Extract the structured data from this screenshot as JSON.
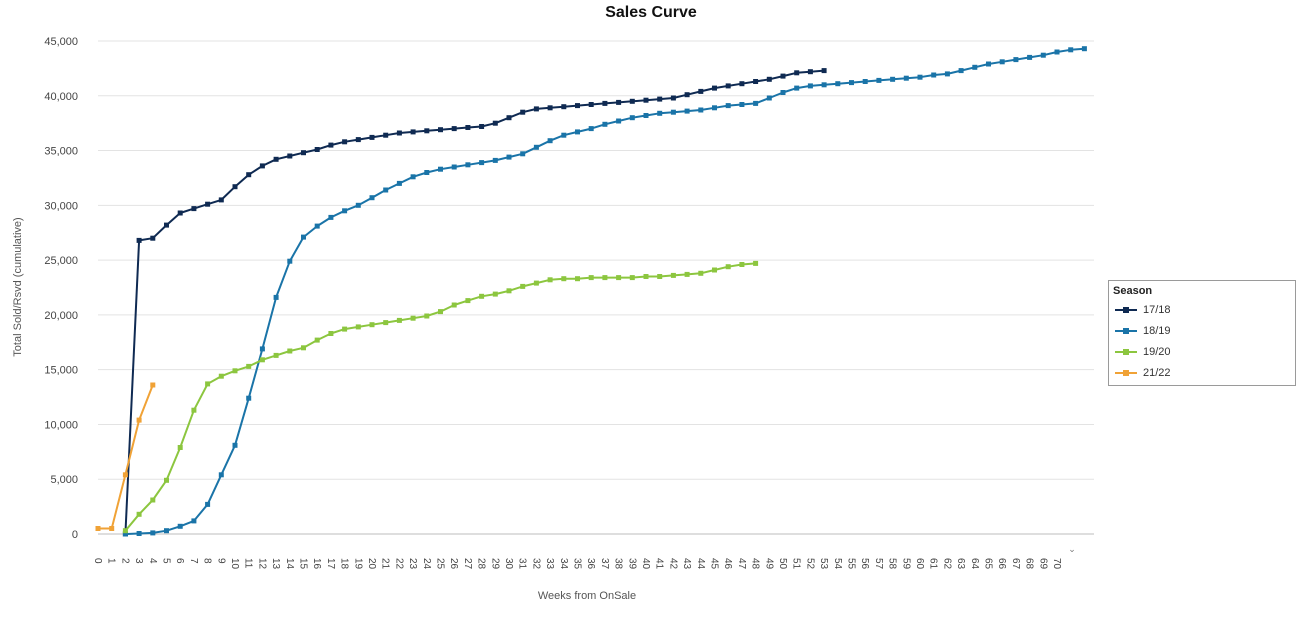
{
  "chart_data": {
    "type": "line",
    "title": "Sales Curve",
    "xlabel": "Weeks from OnSale",
    "ylabel": "Total Sold/Rsvd (cumulative)",
    "x_ticks": [
      "0",
      "1",
      "2",
      "3",
      "4",
      "5",
      "6",
      "7",
      "8",
      "9",
      "10",
      "11",
      "12",
      "13",
      "14",
      "15",
      "16",
      "17",
      "18",
      "19",
      "20",
      "21",
      "22",
      "23",
      "24",
      "25",
      "26",
      "27",
      "28",
      "29",
      "30",
      "31",
      "32",
      "33",
      "34",
      "35",
      "36",
      "37",
      "38",
      "39",
      "40",
      "41",
      "42",
      "43",
      "44",
      "45",
      "46",
      "47",
      "48",
      "49",
      "50",
      "51",
      "52",
      "53",
      "54",
      "55",
      "56",
      "57",
      "58",
      "59",
      "60",
      "61",
      "62",
      "63",
      "64",
      "65",
      "66",
      "67",
      "68",
      "69",
      "70"
    ],
    "ylim": [
      0,
      45000
    ],
    "y_ticks": [
      {
        "value": 0,
        "label": "0"
      },
      {
        "value": 5000,
        "label": "5,000"
      },
      {
        "value": 10000,
        "label": "10,000"
      },
      {
        "value": 15000,
        "label": "15,000"
      },
      {
        "value": 20000,
        "label": "20,000"
      },
      {
        "value": 25000,
        "label": "25,000"
      },
      {
        "value": 30000,
        "label": "30,000"
      },
      {
        "value": 35000,
        "label": "35,000"
      },
      {
        "value": 40000,
        "label": "40,000"
      },
      {
        "value": 45000,
        "label": "45,000"
      }
    ],
    "grid": true,
    "legend": {
      "title": "Season",
      "position": "right"
    },
    "series": [
      {
        "name": "17/18",
        "color": "#0f2a52",
        "start_week": 2,
        "values": [
          0,
          26800,
          27000,
          28200,
          29300,
          29700,
          30100,
          30500,
          31700,
          32800,
          33600,
          34200,
          34500,
          34800,
          35100,
          35500,
          35800,
          36000,
          36200,
          36400,
          36600,
          36700,
          36800,
          36900,
          37000,
          37100,
          37200,
          37500,
          38000,
          38500,
          38800,
          38900,
          39000,
          39100,
          39200,
          39300,
          39400,
          39500,
          39600,
          39700,
          39800,
          40100,
          40400,
          40700,
          40900,
          41100,
          41300,
          41500,
          41800,
          42100,
          42200,
          42300
        ]
      },
      {
        "name": "18/19",
        "color": "#1a74a8",
        "start_week": 2,
        "values": [
          0,
          50,
          100,
          300,
          700,
          1200,
          2700,
          5400,
          8100,
          12400,
          16900,
          21600,
          24900,
          27100,
          28100,
          28900,
          29500,
          30000,
          30700,
          31400,
          32000,
          32600,
          33000,
          33300,
          33500,
          33700,
          33900,
          34100,
          34400,
          34700,
          35300,
          35900,
          36400,
          36700,
          37000,
          37400,
          37700,
          38000,
          38200,
          38400,
          38500,
          38600,
          38700,
          38900,
          39100,
          39200,
          39300,
          39800,
          40300,
          40700,
          40900,
          41000,
          41100,
          41200,
          41300,
          41400,
          41500,
          41600,
          41700,
          41900,
          42000,
          42300,
          42600,
          42900,
          43100,
          43300,
          43500,
          43700,
          44000,
          44200,
          44300
        ]
      },
      {
        "name": "19/20",
        "color": "#8cc63f",
        "start_week": 2,
        "values": [
          300,
          1800,
          3100,
          4900,
          7900,
          11300,
          13700,
          14400,
          14900,
          15300,
          15900,
          16300,
          16700,
          17000,
          17700,
          18300,
          18700,
          18900,
          19100,
          19300,
          19500,
          19700,
          19900,
          20300,
          20900,
          21300,
          21700,
          21900,
          22200,
          22600,
          22900,
          23200,
          23300,
          23300,
          23400,
          23400,
          23400,
          23400,
          23500,
          23500,
          23600,
          23700,
          23800,
          24100,
          24400,
          24600,
          24700
        ]
      },
      {
        "name": "21/22",
        "color": "#f0a236",
        "start_week": 0,
        "values": [
          500,
          500,
          5400,
          10400,
          13600
        ]
      }
    ]
  }
}
